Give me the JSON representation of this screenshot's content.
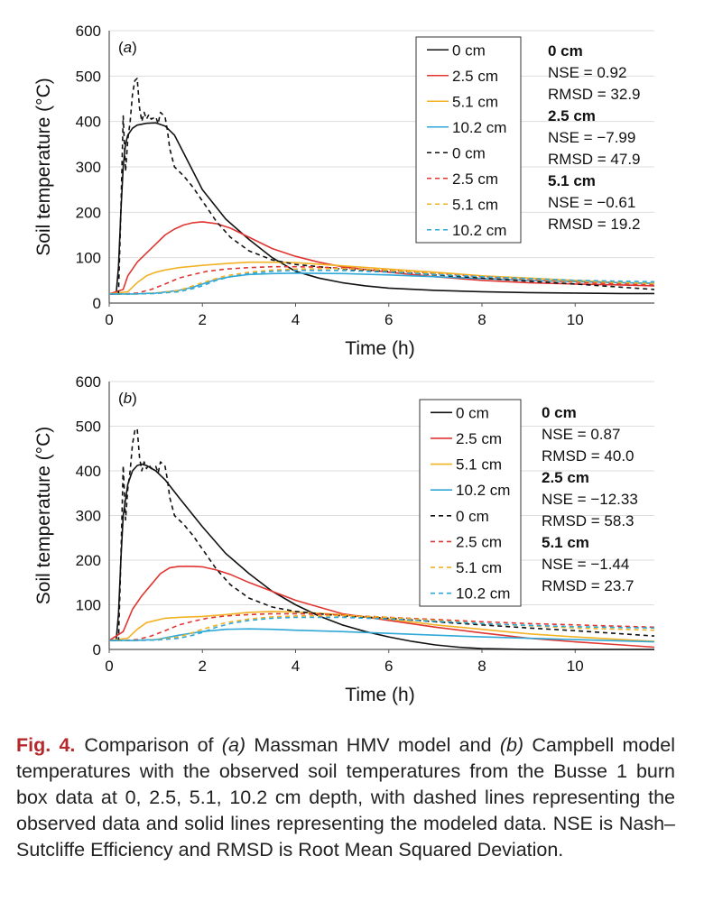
{
  "colors": {
    "d0": "#111111",
    "d25": "#e03530",
    "d51": "#f2b224",
    "d102": "#2fa8d8",
    "axis": "#555555",
    "grid": "#dddddd",
    "caption_label": "#b5292c"
  },
  "legend_labels": [
    "0 cm",
    "2.5 cm",
    "5.1 cm",
    "10.2 cm",
    "0 cm",
    "2.5 cm",
    "5.1 cm",
    "10.2 cm"
  ],
  "chart_data": [
    {
      "type": "line",
      "panel_label": "(a)",
      "xlabel": "Time (h)",
      "ylabel": "Soil temperature (°C)",
      "xlim": [
        0,
        11.7
      ],
      "ylim": [
        0,
        600
      ],
      "xticks": [
        0,
        2,
        4,
        6,
        8,
        10
      ],
      "yticks": [
        0,
        100,
        200,
        300,
        400,
        500,
        600
      ],
      "legend_position": "top-right",
      "series": [
        {
          "name": "0 cm",
          "style": "solid",
          "color_key": "d0",
          "x": [
            0,
            0.15,
            0.2,
            0.25,
            0.3,
            0.35,
            0.4,
            0.5,
            0.6,
            0.8,
            1.0,
            1.2,
            1.4,
            1.6,
            1.8,
            2.0,
            2.5,
            3.0,
            3.5,
            4.0,
            4.5,
            5.0,
            5.5,
            6.0,
            7.0,
            8.0,
            9.0,
            10.0,
            11.0,
            11.7
          ],
          "y": [
            20,
            20,
            80,
            200,
            300,
            350,
            370,
            385,
            392,
            396,
            397,
            390,
            370,
            330,
            290,
            250,
            185,
            140,
            100,
            70,
            55,
            45,
            38,
            33,
            28,
            25,
            23,
            22,
            21,
            21
          ]
        },
        {
          "name": "2.5 cm",
          "style": "solid",
          "color_key": "d25",
          "x": [
            0,
            0.3,
            0.4,
            0.6,
            0.8,
            1.0,
            1.2,
            1.4,
            1.6,
            1.8,
            2.0,
            2.3,
            2.6,
            3.0,
            3.5,
            4.0,
            4.5,
            5.0,
            6.0,
            7.0,
            8.0,
            9.0,
            10.0,
            11.0,
            11.7
          ],
          "y": [
            20,
            30,
            60,
            90,
            110,
            130,
            150,
            163,
            172,
            177,
            179,
            175,
            165,
            145,
            120,
            103,
            90,
            80,
            68,
            58,
            50,
            45,
            42,
            40,
            38
          ]
        },
        {
          "name": "5.1 cm",
          "style": "solid",
          "color_key": "d51",
          "x": [
            0,
            0.4,
            0.6,
            0.8,
            1.0,
            1.2,
            1.5,
            2.0,
            2.5,
            3.0,
            3.5,
            4.0,
            5.0,
            6.0,
            7.0,
            8.0,
            9.0,
            10.0,
            11.0,
            11.7
          ],
          "y": [
            20,
            25,
            45,
            60,
            68,
            73,
            78,
            83,
            87,
            90,
            90,
            89,
            82,
            75,
            68,
            60,
            55,
            50,
            45,
            43
          ]
        },
        {
          "name": "10.2 cm",
          "style": "solid",
          "color_key": "d102",
          "x": [
            0,
            0.5,
            1.0,
            1.5,
            1.8,
            2.0,
            2.3,
            2.6,
            3.0,
            3.5,
            4.0,
            5.0,
            6.0,
            7.0,
            8.0,
            9.0,
            10.0,
            11.0,
            11.7
          ],
          "y": [
            20,
            20,
            22,
            28,
            35,
            42,
            52,
            58,
            63,
            65,
            66,
            65,
            62,
            58,
            54,
            50,
            47,
            45,
            44
          ]
        },
        {
          "name": "0 cm",
          "style": "dashed",
          "color_key": "d0",
          "x": [
            0,
            0.2,
            0.25,
            0.3,
            0.35,
            0.4,
            0.45,
            0.5,
            0.55,
            0.6,
            0.65,
            0.7,
            0.75,
            0.8,
            0.85,
            0.9,
            1.0,
            1.05,
            1.1,
            1.2,
            1.25,
            1.3,
            1.4,
            1.6,
            1.8,
            2.0,
            2.3,
            2.6,
            3.0,
            3.5,
            4.0,
            4.5,
            5.0,
            6.0,
            7.0,
            8.0,
            9.0,
            10.0,
            11.0,
            11.7
          ],
          "y": [
            20,
            20,
            200,
            412,
            290,
            360,
            400,
            460,
            490,
            495,
            430,
            400,
            420,
            405,
            415,
            405,
            410,
            395,
            420,
            410,
            380,
            340,
            300,
            280,
            255,
            225,
            180,
            145,
            115,
            95,
            85,
            80,
            75,
            70,
            62,
            55,
            48,
            42,
            35,
            30
          ]
        },
        {
          "name": "2.5 cm",
          "style": "dashed",
          "color_key": "d25",
          "x": [
            0,
            0.3,
            0.6,
            0.9,
            1.2,
            1.5,
            1.8,
            2.1,
            2.5,
            3.0,
            3.5,
            4.0,
            4.5,
            5.0,
            6.0,
            7.0,
            8.0,
            9.0,
            10.0,
            11.0,
            11.7
          ],
          "y": [
            20,
            20,
            22,
            30,
            42,
            55,
            63,
            70,
            75,
            78,
            80,
            80,
            79,
            77,
            72,
            65,
            58,
            52,
            46,
            42,
            40
          ]
        },
        {
          "name": "5.1 cm",
          "style": "dashed",
          "color_key": "d51",
          "x": [
            0,
            0.6,
            1.0,
            1.5,
            1.8,
            2.0,
            2.5,
            3.0,
            3.5,
            4.0,
            5.0,
            6.0,
            7.0,
            8.0,
            9.0,
            10.0,
            11.0,
            11.7
          ],
          "y": [
            20,
            20,
            22,
            28,
            38,
            45,
            60,
            68,
            73,
            75,
            76,
            72,
            65,
            58,
            53,
            48,
            45,
            43
          ]
        },
        {
          "name": "10.2 cm",
          "style": "dashed",
          "color_key": "d102",
          "x": [
            0,
            0.5,
            1.0,
            1.5,
            1.8,
            2.0,
            2.3,
            2.6,
            3.0,
            3.5,
            4.0,
            5.0,
            6.0,
            7.0,
            8.0,
            9.0,
            10.0,
            11.0,
            11.7
          ],
          "y": [
            20,
            20,
            21,
            25,
            32,
            38,
            50,
            58,
            65,
            70,
            72,
            72,
            68,
            63,
            58,
            54,
            50,
            48,
            47
          ]
        }
      ],
      "stats": [
        {
          "depth": "0 cm",
          "nse": "NSE = 0.92",
          "rmsd": "RMSD = 32.9"
        },
        {
          "depth": "2.5 cm",
          "nse": "NSE = −7.99",
          "rmsd": "RMSD = 47.9"
        },
        {
          "depth": "5.1 cm",
          "nse": "NSE = −0.61",
          "rmsd": "RMSD = 19.2"
        }
      ]
    },
    {
      "type": "line",
      "panel_label": "(b)",
      "xlabel": "Time (h)",
      "ylabel": "Soil temperature (°C)",
      "xlim": [
        0,
        11.7
      ],
      "ylim": [
        0,
        600
      ],
      "xticks": [
        0,
        2,
        4,
        6,
        8,
        10
      ],
      "yticks": [
        0,
        100,
        200,
        300,
        400,
        500,
        600
      ],
      "legend_position": "top-right",
      "series": [
        {
          "name": "0 cm",
          "style": "solid",
          "color_key": "d0",
          "x": [
            0,
            0.15,
            0.2,
            0.25,
            0.3,
            0.4,
            0.5,
            0.6,
            0.7,
            0.8,
            1.0,
            1.2,
            1.5,
            2.0,
            2.5,
            3.0,
            3.5,
            4.0,
            4.5,
            5.0,
            5.5,
            6.0,
            6.5,
            7.0,
            7.5,
            8.0,
            8.5,
            9.0,
            10.0,
            11.0,
            11.7
          ],
          "y": [
            20,
            20,
            80,
            200,
            300,
            370,
            400,
            412,
            415,
            412,
            400,
            380,
            340,
            275,
            215,
            170,
            130,
            100,
            75,
            55,
            40,
            28,
            18,
            10,
            5,
            2,
            1,
            0,
            0,
            0,
            0
          ]
        },
        {
          "name": "2.5 cm",
          "style": "solid",
          "color_key": "d25",
          "x": [
            0,
            0.3,
            0.5,
            0.7,
            0.9,
            1.1,
            1.3,
            1.5,
            1.8,
            2.0,
            2.3,
            2.6,
            3.0,
            3.5,
            4.0,
            4.5,
            5.0,
            6.0,
            7.0,
            8.0,
            9.0,
            10.0,
            11.0,
            11.7
          ],
          "y": [
            20,
            40,
            90,
            120,
            145,
            170,
            183,
            186,
            186,
            185,
            178,
            168,
            150,
            130,
            110,
            95,
            80,
            65,
            50,
            37,
            25,
            17,
            10,
            5
          ]
        },
        {
          "name": "5.1 cm",
          "style": "solid",
          "color_key": "d51",
          "x": [
            0,
            0.4,
            0.6,
            0.8,
            1.0,
            1.2,
            1.5,
            2.0,
            2.5,
            3.0,
            3.5,
            4.0,
            5.0,
            6.0,
            7.0,
            8.0,
            9.0,
            10.0,
            11.0,
            11.7
          ],
          "y": [
            20,
            25,
            45,
            60,
            65,
            70,
            72,
            74,
            78,
            83,
            85,
            84,
            78,
            68,
            55,
            45,
            35,
            28,
            22,
            18
          ]
        },
        {
          "name": "10.2 cm",
          "style": "solid",
          "color_key": "d102",
          "x": [
            0,
            0.5,
            1.0,
            1.5,
            2.0,
            2.5,
            3.0,
            3.5,
            4.0,
            5.0,
            6.0,
            7.0,
            8.0,
            9.0,
            10.0,
            11.0,
            11.7
          ],
          "y": [
            20,
            20,
            22,
            32,
            40,
            45,
            46,
            45,
            43,
            40,
            36,
            32,
            28,
            25,
            22,
            19,
            17
          ]
        },
        {
          "name": "0 cm",
          "style": "dashed",
          "color_key": "d0",
          "x": [
            0,
            0.2,
            0.25,
            0.3,
            0.35,
            0.4,
            0.45,
            0.5,
            0.55,
            0.6,
            0.65,
            0.7,
            0.75,
            0.8,
            0.85,
            0.9,
            1.0,
            1.05,
            1.1,
            1.2,
            1.25,
            1.3,
            1.4,
            1.6,
            1.8,
            2.0,
            2.3,
            2.6,
            3.0,
            3.5,
            4.0,
            4.5,
            5.0,
            6.0,
            7.0,
            8.0,
            9.0,
            10.0,
            11.0,
            11.7
          ],
          "y": [
            20,
            20,
            200,
            412,
            290,
            360,
            400,
            460,
            490,
            495,
            430,
            400,
            420,
            405,
            415,
            405,
            410,
            395,
            420,
            410,
            380,
            340,
            300,
            280,
            255,
            225,
            180,
            145,
            115,
            95,
            85,
            80,
            75,
            70,
            62,
            55,
            48,
            42,
            35,
            30
          ]
        },
        {
          "name": "2.5 cm",
          "style": "dashed",
          "color_key": "d25",
          "x": [
            0,
            0.3,
            0.6,
            0.9,
            1.2,
            1.5,
            1.8,
            2.1,
            2.5,
            3.0,
            3.5,
            4.0,
            4.5,
            5.0,
            6.0,
            7.0,
            8.0,
            9.0,
            10.0,
            11.0,
            11.7
          ],
          "y": [
            20,
            20,
            22,
            30,
            42,
            55,
            63,
            70,
            75,
            78,
            80,
            80,
            79,
            77,
            72,
            67,
            62,
            58,
            55,
            52,
            50
          ]
        },
        {
          "name": "5.1 cm",
          "style": "dashed",
          "color_key": "d51",
          "x": [
            0,
            0.6,
            1.0,
            1.5,
            1.8,
            2.0,
            2.5,
            3.0,
            3.5,
            4.0,
            5.0,
            6.0,
            7.0,
            8.0,
            9.0,
            10.0,
            11.0,
            11.7
          ],
          "y": [
            20,
            20,
            22,
            28,
            38,
            45,
            60,
            68,
            73,
            75,
            76,
            72,
            65,
            58,
            53,
            48,
            45,
            43
          ]
        },
        {
          "name": "10.2 cm",
          "style": "dashed",
          "color_key": "d102",
          "x": [
            0,
            0.5,
            1.0,
            1.5,
            1.8,
            2.0,
            2.3,
            2.6,
            3.0,
            3.5,
            4.0,
            5.0,
            6.0,
            7.0,
            8.0,
            9.0,
            10.0,
            11.0,
            11.7
          ],
          "y": [
            20,
            20,
            21,
            25,
            32,
            38,
            50,
            58,
            65,
            70,
            72,
            72,
            68,
            63,
            58,
            54,
            51,
            49,
            48
          ]
        }
      ],
      "stats": [
        {
          "depth": "0 cm",
          "nse": "NSE = 0.87",
          "rmsd": "RMSD = 40.0"
        },
        {
          "depth": "2.5 cm",
          "nse": "NSE = −12.33",
          "rmsd": "RMSD = 58.3"
        },
        {
          "depth": "5.1 cm",
          "nse": "NSE = −1.44",
          "rmsd": "RMSD = 23.7"
        }
      ]
    }
  ],
  "caption": {
    "label": "Fig. 4.",
    "t1": "Comparison of ",
    "a": "(a)",
    "t2": " Massman HMV model and ",
    "b": "(b)",
    "t3": " Campbell model temperatures with the observed soil temperatures from the Busse 1 burn box data at 0, 2.5, 5.1, 10.2 cm depth, with dashed lines representing the observed data and solid lines representing the modeled data. NSE is Nash–Sutcliffe Efficiency and RMSD is Root Mean Squared Deviation."
  }
}
